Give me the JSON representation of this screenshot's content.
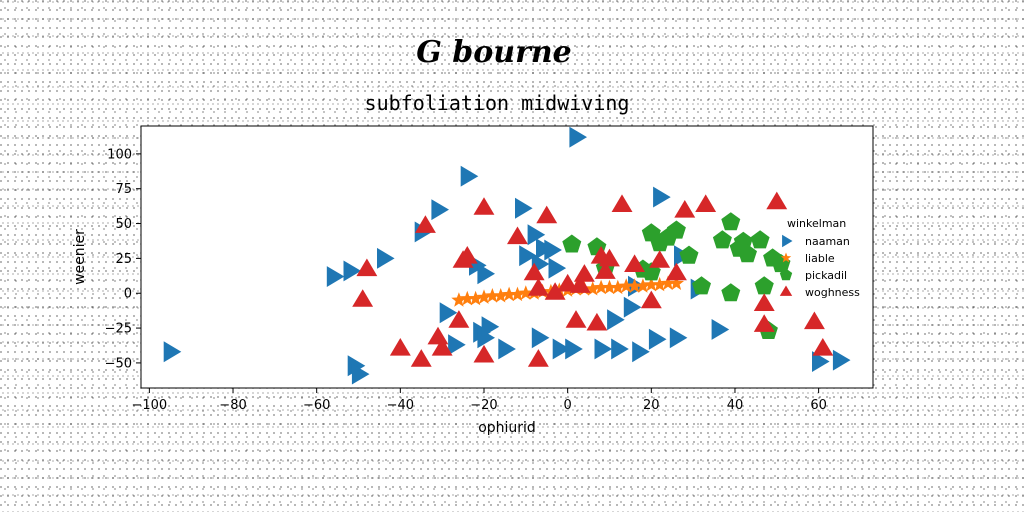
{
  "chart_data": {
    "type": "scatter",
    "suptitle": "G bourne",
    "title": "subfoliation midwiving",
    "xlabel": "ophiurid",
    "ylabel": "weenier",
    "xlim": [
      -102,
      73
    ],
    "ylim": [
      -68,
      120
    ],
    "xticks": [
      -100,
      -80,
      -60,
      -40,
      -20,
      0,
      20,
      40,
      60
    ],
    "yticks": [
      -50,
      -25,
      0,
      25,
      50,
      75,
      100
    ],
    "grid": false,
    "legend": {
      "title": "winkelman",
      "placement": "right"
    },
    "series": [
      {
        "name": "naaman",
        "marker": "triangle-right",
        "color": "#1f77b4",
        "points": [
          [
            -95,
            -42
          ],
          [
            -56,
            12
          ],
          [
            -52,
            16
          ],
          [
            -51,
            -52
          ],
          [
            -50,
            -58
          ],
          [
            -44,
            25
          ],
          [
            -35,
            44
          ],
          [
            -31,
            60
          ],
          [
            -24,
            84
          ],
          [
            -22,
            20
          ],
          [
            -29,
            -14
          ],
          [
            -27,
            -37
          ],
          [
            -21,
            -28
          ],
          [
            -20,
            -32
          ],
          [
            -19,
            -24
          ],
          [
            -20,
            14
          ],
          [
            -15,
            -40
          ],
          [
            -11,
            61
          ],
          [
            -10,
            27
          ],
          [
            -8,
            42
          ],
          [
            -6,
            32
          ],
          [
            -7,
            21
          ],
          [
            -4,
            31
          ],
          [
            -3,
            18
          ],
          [
            -7,
            -32
          ],
          [
            -2,
            -40
          ],
          [
            2,
            112
          ],
          [
            1,
            -40
          ],
          [
            8,
            -40
          ],
          [
            12,
            -40
          ],
          [
            11,
            -19
          ],
          [
            17,
            -42
          ],
          [
            15,
            -10
          ],
          [
            16,
            5
          ],
          [
            21,
            -33
          ],
          [
            22,
            69
          ],
          [
            26,
            -32
          ],
          [
            27,
            27
          ],
          [
            31,
            3
          ],
          [
            36,
            -26
          ],
          [
            60,
            -49
          ],
          [
            65,
            -48
          ]
        ]
      },
      {
        "name": "liable",
        "marker": "star",
        "color": "#ff7f0e",
        "points": [
          [
            -26,
            -5
          ],
          [
            -24,
            -4
          ],
          [
            -22,
            -4
          ],
          [
            -20,
            -3
          ],
          [
            -18,
            -2
          ],
          [
            -16,
            -2
          ],
          [
            -14,
            -1
          ],
          [
            -12,
            -1
          ],
          [
            -10,
            0
          ],
          [
            -8,
            0
          ],
          [
            -6,
            1
          ],
          [
            -4,
            1
          ],
          [
            -2,
            2
          ],
          [
            0,
            2
          ],
          [
            2,
            3
          ],
          [
            4,
            3
          ],
          [
            6,
            3
          ],
          [
            8,
            4
          ],
          [
            10,
            4
          ],
          [
            12,
            4
          ],
          [
            14,
            5
          ],
          [
            16,
            5
          ],
          [
            18,
            5
          ],
          [
            20,
            6
          ],
          [
            22,
            6
          ],
          [
            24,
            7
          ],
          [
            26,
            7
          ]
        ]
      },
      {
        "name": "pickadil",
        "marker": "pentagon",
        "color": "#2ca02c",
        "points": [
          [
            1,
            35
          ],
          [
            7,
            33
          ],
          [
            9,
            18
          ],
          [
            18,
            17
          ],
          [
            20,
            43
          ],
          [
            20,
            15
          ],
          [
            22,
            36
          ],
          [
            24,
            40
          ],
          [
            26,
            45
          ],
          [
            29,
            27
          ],
          [
            32,
            5
          ],
          [
            37,
            38
          ],
          [
            39,
            51
          ],
          [
            39,
            0
          ],
          [
            41,
            32
          ],
          [
            42,
            37
          ],
          [
            43,
            28
          ],
          [
            46,
            38
          ],
          [
            47,
            5
          ],
          [
            48,
            -27
          ],
          [
            49,
            25
          ],
          [
            51,
            21
          ]
        ]
      },
      {
        "name": "woghness",
        "marker": "triangle-up",
        "color": "#d62728",
        "points": [
          [
            -49,
            -5
          ],
          [
            -48,
            17
          ],
          [
            -40,
            -40
          ],
          [
            -35,
            -48
          ],
          [
            -34,
            48
          ],
          [
            -31,
            -32
          ],
          [
            -30,
            -40
          ],
          [
            -26,
            -20
          ],
          [
            -25,
            23
          ],
          [
            -24,
            26
          ],
          [
            -20,
            -45
          ],
          [
            -20,
            61
          ],
          [
            -12,
            40
          ],
          [
            -8,
            14
          ],
          [
            -7,
            -48
          ],
          [
            -7,
            3
          ],
          [
            -5,
            55
          ],
          [
            -3,
            0
          ],
          [
            0,
            6
          ],
          [
            2,
            -20
          ],
          [
            3,
            5
          ],
          [
            4,
            13
          ],
          [
            7,
            -22
          ],
          [
            8,
            26
          ],
          [
            9,
            15
          ],
          [
            10,
            24
          ],
          [
            13,
            63
          ],
          [
            16,
            20
          ],
          [
            20,
            -6
          ],
          [
            22,
            23
          ],
          [
            26,
            14
          ],
          [
            28,
            59
          ],
          [
            33,
            63
          ],
          [
            47,
            -23
          ],
          [
            47,
            -8
          ],
          [
            50,
            65
          ],
          [
            59,
            -21
          ],
          [
            61,
            -40
          ]
        ]
      }
    ]
  }
}
